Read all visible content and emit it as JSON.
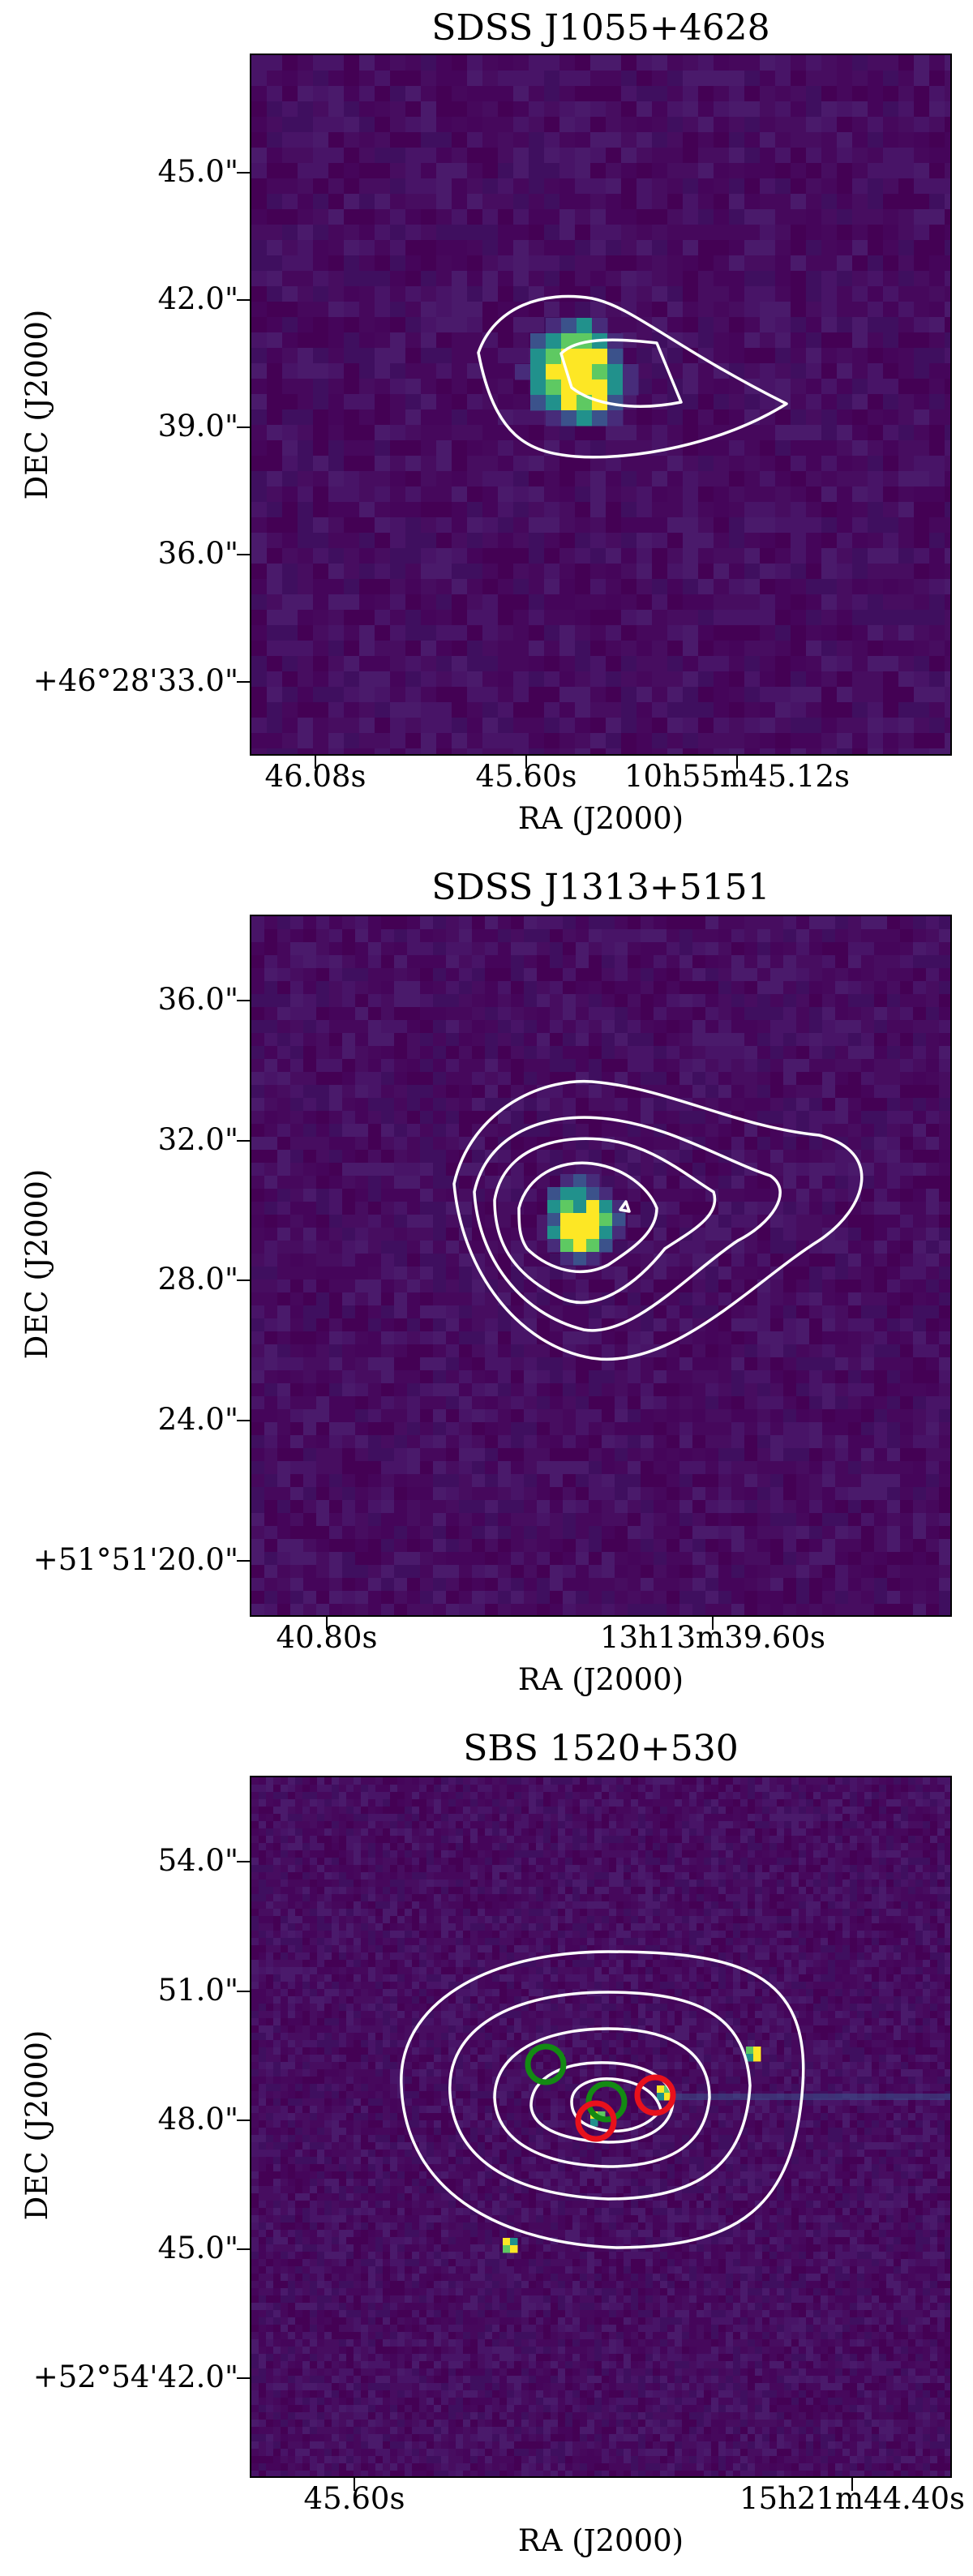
{
  "chart_data": [
    {
      "type": "heatmap",
      "title": "SDSS J1055+4628",
      "xlabel": "RA (J2000)",
      "ylabel": "DEC (J2000)",
      "xticks": [
        "46.08s",
        "45.60s",
        "10h55m45.12s"
      ],
      "yticks": [
        "45.0\"",
        "42.0\"",
        "39.0\"",
        "36.0\"",
        "+46°28'33.0\""
      ],
      "colormap": "viridis",
      "contour_color": "#ffffff",
      "markers": []
    },
    {
      "type": "heatmap",
      "title": "SDSS J1313+5151",
      "xlabel": "RA (J2000)",
      "ylabel": "DEC (J2000)",
      "xticks": [
        "40.80s",
        "13h13m39.60s"
      ],
      "yticks": [
        "36.0\"",
        "32.0\"",
        "28.0\"",
        "24.0\"",
        "+51°51'20.0\""
      ],
      "colormap": "viridis",
      "contour_color": "#ffffff",
      "markers": []
    },
    {
      "type": "heatmap",
      "title": "SBS 1520+530",
      "xlabel": "RA (J2000)",
      "ylabel": "DEC (J2000)",
      "xticks": [
        "45.60s",
        "15h21m44.40s"
      ],
      "yticks": [
        "54.0\"",
        "51.0\"",
        "48.0\"",
        "45.0\"",
        "+52°54'42.0\""
      ],
      "colormap": "viridis",
      "contour_color": "#ffffff",
      "markers": [
        {
          "color": "#138a13",
          "shape": "circle"
        },
        {
          "color": "#138a13",
          "shape": "circle"
        },
        {
          "color": "#e8111c",
          "shape": "circle"
        },
        {
          "color": "#e8111c",
          "shape": "circle"
        }
      ]
    }
  ]
}
